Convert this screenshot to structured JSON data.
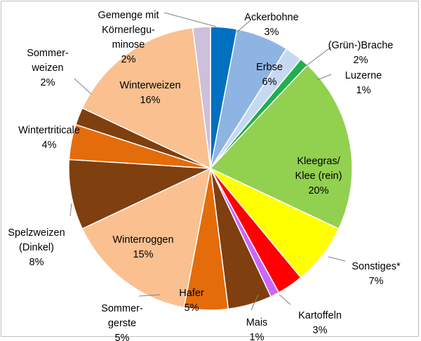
{
  "chart_data": {
    "type": "pie",
    "title": "",
    "start_angle_deg": 0,
    "direction": "clockwise",
    "slices": [
      {
        "name": "Ackerbohne",
        "label_lines": [
          "Ackerbohne",
          "3%"
        ],
        "value": 3,
        "color": "#0070c0"
      },
      {
        "name": "Erbse",
        "label_lines": [
          "Erbse",
          "6%"
        ],
        "value": 6,
        "color": "#8eb4e3"
      },
      {
        "name": "(Grün-)Brache",
        "label_lines": [
          "(Grün-)Brache",
          "2%"
        ],
        "value": 2,
        "color": "#c6d9f1"
      },
      {
        "name": "Luzerne",
        "label_lines": [
          "Luzerne",
          "1%"
        ],
        "value": 1,
        "color": "#1db04b"
      },
      {
        "name": "Kleegras/ Klee (rein)",
        "label_lines": [
          "Kleegras/",
          "Klee (rein)",
          "20%"
        ],
        "value": 20,
        "color": "#92d050"
      },
      {
        "name": "Sonstiges*",
        "label_lines": [
          "Sonstiges*",
          "7%"
        ],
        "value": 7,
        "color": "#ffff00"
      },
      {
        "name": "Kartoffeln",
        "label_lines": [
          "Kartoffeln",
          "3%"
        ],
        "value": 3,
        "color": "#ff0000"
      },
      {
        "name": "Mais",
        "label_lines": [
          "Mais",
          "1%"
        ],
        "value": 1,
        "color": "#cc66ff"
      },
      {
        "name": "Sommergerste",
        "label_lines": [
          "Sommer-",
          "gerste",
          "5%"
        ],
        "value": 5,
        "color": "#7f3f0f"
      },
      {
        "name": "Hafer",
        "label_lines": [
          "Hafer",
          "5%"
        ],
        "value": 5,
        "color": "#e46c0a"
      },
      {
        "name": "Winterroggen",
        "label_lines": [
          "Winterroggen",
          "15%"
        ],
        "value": 15,
        "color": "#fac090"
      },
      {
        "name": "Spelzweizen (Dinkel)",
        "label_lines": [
          "Spelzweizen",
          "(Dinkel)",
          "8%"
        ],
        "value": 8,
        "color": "#7f3f0f"
      },
      {
        "name": "Wintertriticale",
        "label_lines": [
          "Wintertriticale",
          "4%"
        ],
        "value": 4,
        "color": "#e46c0a"
      },
      {
        "name": "Sommerweizen",
        "label_lines": [
          "Sommer-",
          "weizen",
          "2%"
        ],
        "value": 2,
        "color": "#7f3f0f"
      },
      {
        "name": "Winterweizen",
        "label_lines": [
          "Winterweizen",
          "16%"
        ],
        "value": 16,
        "color": "#fac090"
      },
      {
        "name": "Gemenge mit Körnerleguminose",
        "label_lines": [
          "Gemenge mit",
          "Körnerlegu-",
          "minose",
          "2%"
        ],
        "value": 2,
        "color": "#ccc0da"
      }
    ]
  }
}
